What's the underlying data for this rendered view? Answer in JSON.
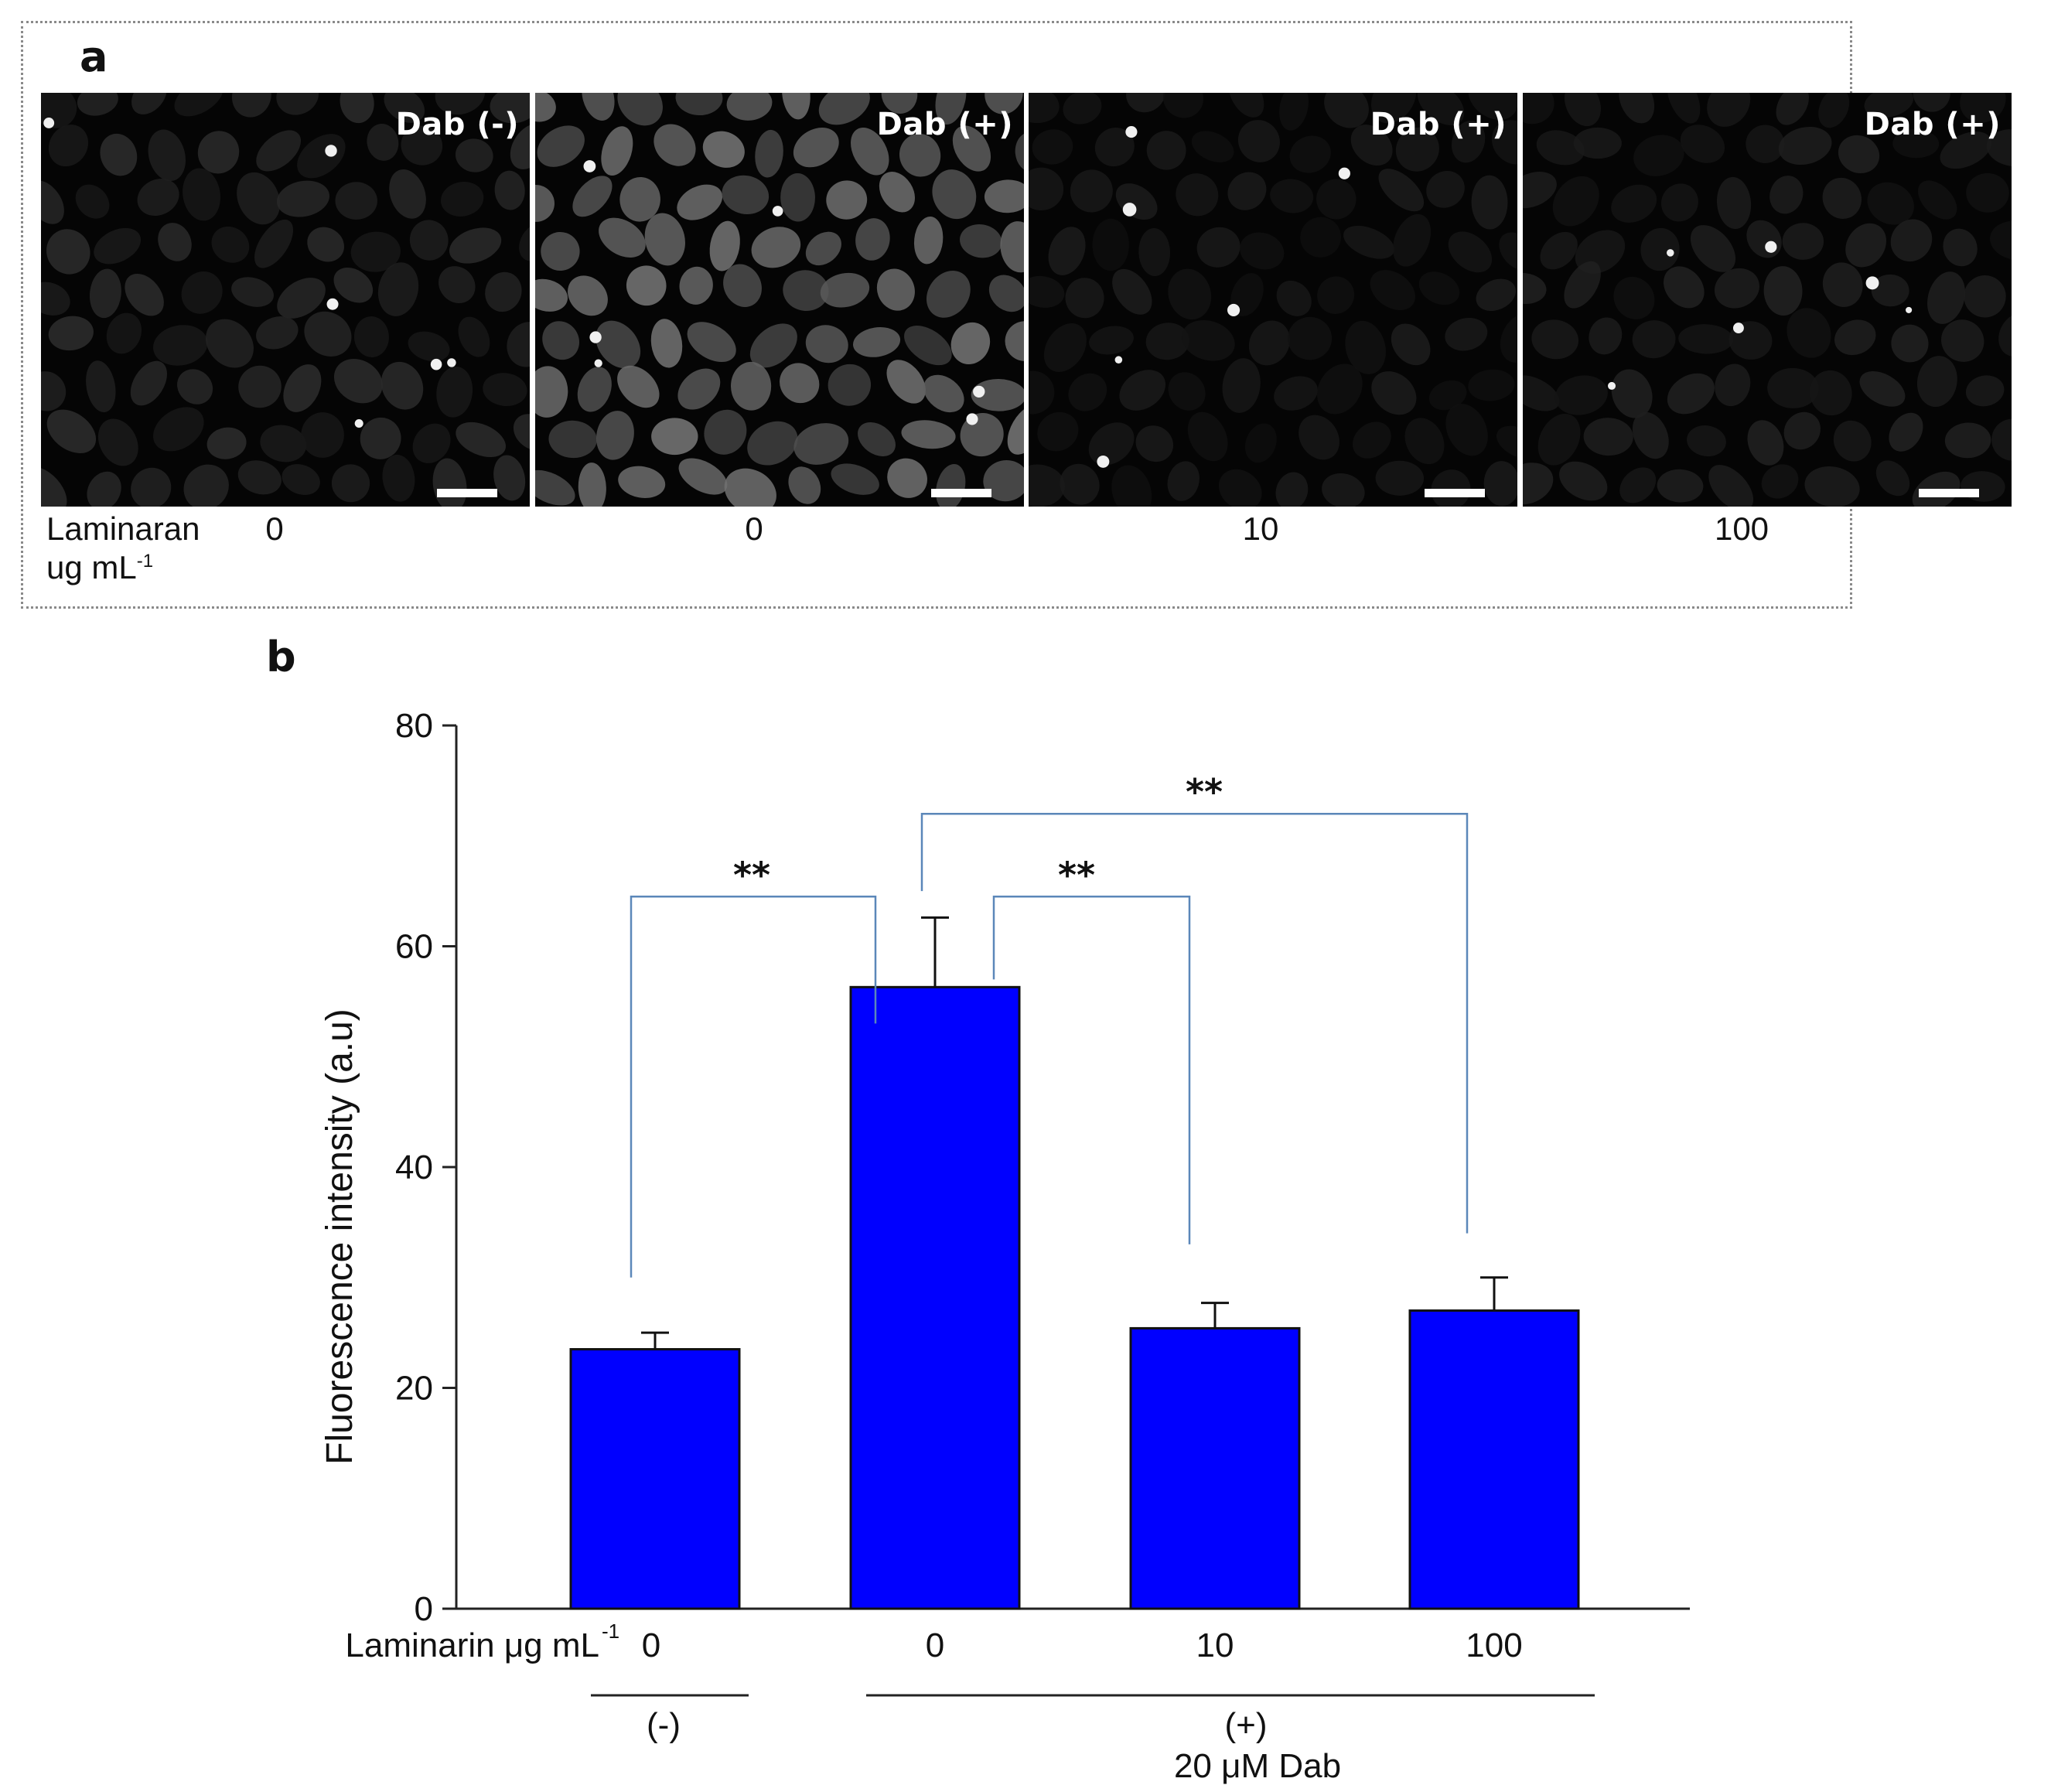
{
  "panel_a": {
    "letter": "a",
    "images": [
      {
        "label": "Dab (-)",
        "laminaran": "0"
      },
      {
        "label": "Dab (+)",
        "laminaran": "0"
      },
      {
        "label": "Dab (+)",
        "laminaran": "10"
      },
      {
        "label": "Dab (+)",
        "laminaran": "100"
      }
    ],
    "row_label_line1": "Laminaran",
    "row_label_line2": "ug mL",
    "row_label_sup": "-1"
  },
  "panel_b": {
    "letter": "b"
  },
  "chart_data": {
    "type": "bar",
    "ylabel": "Fluorescence intensity (a.u)",
    "ylim": [
      0,
      80
    ],
    "yticks": [
      0,
      20,
      40,
      60,
      80
    ],
    "x_axis_label": "Laminarin μg mL",
    "x_axis_label_sup": "-1",
    "categories": [
      "0",
      "0",
      "10",
      "100"
    ],
    "values": [
      23.5,
      56.3,
      25.4,
      27.0
    ],
    "errors": [
      1.5,
      6.3,
      2.3,
      3.0
    ],
    "bar_color": "#0000ff",
    "significance": [
      {
        "label": "**",
        "from": 0,
        "to": 1
      },
      {
        "label": "**",
        "from": 1,
        "to": 2
      },
      {
        "label": "**",
        "from": 1,
        "to": 3
      }
    ],
    "groups": [
      {
        "label": "(-)",
        "sublabel": ""
      },
      {
        "label": "(+)",
        "sublabel": "20 μM Dab"
      }
    ]
  }
}
